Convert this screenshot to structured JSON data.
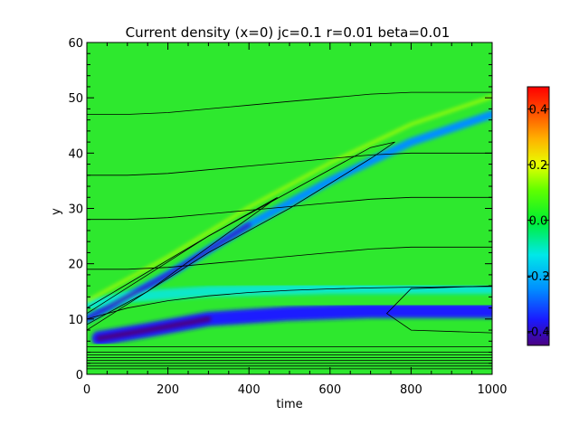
{
  "chart_data": {
    "type": "heatmap",
    "title": "Current density (x=0) jc=0.1 r=0.01 beta=0.01",
    "xlabel": "time",
    "ylabel": "y",
    "xlim": [
      0,
      1000
    ],
    "ylim": [
      0,
      60
    ],
    "x_ticks": [
      "0",
      "200",
      "400",
      "600",
      "800",
      "1000"
    ],
    "x_tick_values": [
      0,
      200,
      400,
      600,
      800,
      1000
    ],
    "y_ticks": [
      "0",
      "10",
      "20",
      "30",
      "40",
      "50",
      "60"
    ],
    "y_tick_values": [
      0,
      10,
      20,
      30,
      40,
      50,
      60
    ],
    "colorbar": {
      "range": [
        -0.45,
        0.48
      ],
      "tick_labels": [
        "0.4",
        "0.2",
        "0.0",
        "-0.2",
        "-0.4"
      ],
      "tick_values": [
        0.4,
        0.2,
        0.0,
        -0.2,
        -0.4
      ],
      "colormap": "rainbow"
    },
    "background_value": 0.0,
    "features": [
      {
        "kind": "ridge",
        "x": [
          0,
          200,
          400,
          600,
          800,
          1000
        ],
        "y": [
          10,
          18,
          27,
          35,
          42,
          47
        ],
        "value": -0.25
      },
      {
        "kind": "band",
        "x": [
          30,
          150,
          300,
          500,
          700,
          1000
        ],
        "y": [
          6.5,
          8,
          10,
          11,
          11.5,
          11.5
        ],
        "value": -0.35
      },
      {
        "kind": "band",
        "x": [
          0,
          100,
          300,
          600,
          1000
        ],
        "y": [
          12.5,
          14,
          15,
          15.5,
          15.5
        ],
        "value": -0.1
      }
    ],
    "contour_levels_y_at_t1000": [
      1,
      1.5,
      2,
      2.5,
      3,
      3.5,
      4,
      5,
      16,
      23,
      32,
      40,
      51
    ]
  },
  "colors": {
    "background_green": "#2ee82e",
    "axis": "#000000",
    "contour": "#000000"
  }
}
